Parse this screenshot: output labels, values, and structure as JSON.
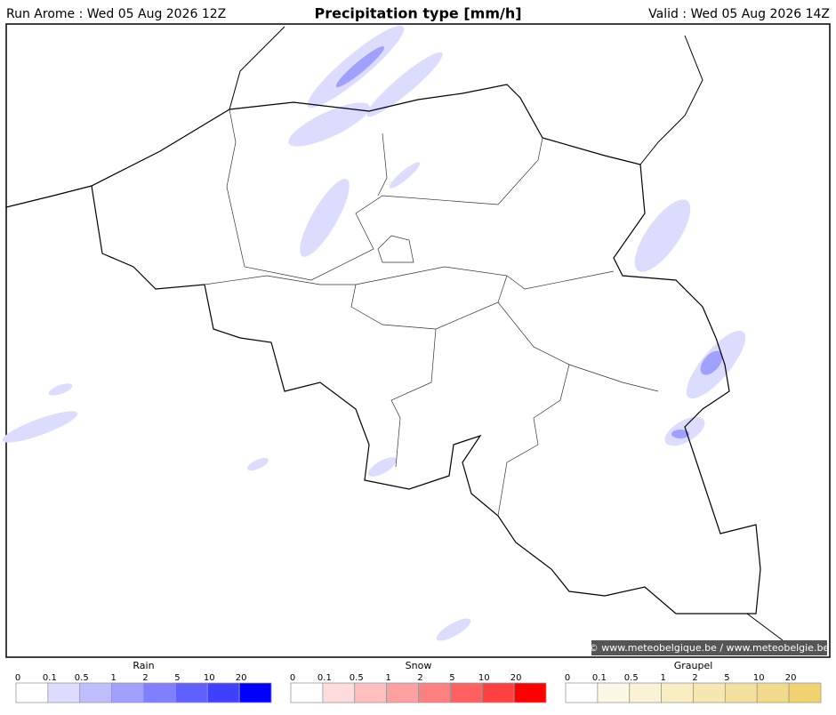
{
  "header": {
    "left": "Run Arome : Wed 05 Aug 2026 12Z",
    "title": "Precipitation type [mm/h]",
    "right": "Valid : Wed 05 Aug 2026 14Z"
  },
  "credit": "© www.meteobelgique.be / www.meteobelgie.be",
  "legends": [
    {
      "title": "Rain",
      "labels": [
        0,
        0.1,
        0.5,
        1,
        2,
        5,
        10,
        20
      ],
      "colors": [
        "#ffffff",
        "#dcdcff",
        "#bfbfff",
        "#a0a0ff",
        "#8080ff",
        "#6060ff",
        "#4040ff",
        "#0000ff"
      ]
    },
    {
      "title": "Snow",
      "labels": [
        0,
        0.1,
        0.5,
        1,
        2,
        5,
        10,
        20
      ],
      "colors": [
        "#ffffff",
        "#ffdcdc",
        "#ffbfbf",
        "#ffa0a0",
        "#ff8080",
        "#ff6060",
        "#ff4040",
        "#ff0000"
      ]
    },
    {
      "title": "Graupel",
      "labels": [
        0,
        0.1,
        0.5,
        1,
        2,
        5,
        10,
        20
      ],
      "colors": [
        "#ffffff",
        "#fcf8e6",
        "#faf2d4",
        "#f8ecc2",
        "#f6e6b0",
        "#f4e09e",
        "#f2da8c",
        "#f0d270"
      ]
    }
  ]
}
